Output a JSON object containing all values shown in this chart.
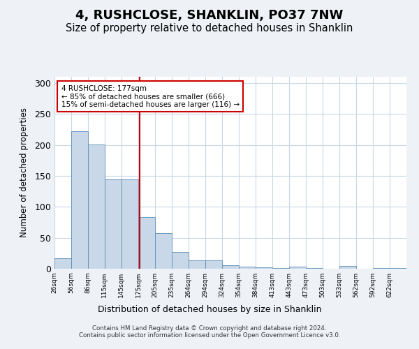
{
  "title": "4, RUSHCLOSE, SHANKLIN, PO37 7NW",
  "subtitle": "Size of property relative to detached houses in Shanklin",
  "xlabel": "Distribution of detached houses by size in Shanklin",
  "ylabel": "Number of detached properties",
  "bar_color": "#c8d8e8",
  "bar_edge_color": "#5b8db8",
  "bin_edges": [
    26,
    56,
    86,
    115,
    145,
    175,
    205,
    235,
    264,
    294,
    324,
    354,
    384,
    413,
    443,
    473,
    503,
    533,
    562,
    592,
    622,
    652
  ],
  "bar_heights": [
    17,
    222,
    201,
    144,
    144,
    83,
    57,
    27,
    14,
    13,
    6,
    3,
    2,
    1,
    3,
    1,
    0,
    4,
    0,
    1,
    1
  ],
  "vline_x": 177,
  "vline_color": "#cc0000",
  "annotation_text": "4 RUSHCLOSE: 177sqm\n← 85% of detached houses are smaller (666)\n15% of semi-detached houses are larger (116) →",
  "annotation_box_color": "#cc0000",
  "ylim": [
    0,
    310
  ],
  "yticks": [
    0,
    50,
    100,
    150,
    200,
    250,
    300
  ],
  "footer": "Contains HM Land Registry data © Crown copyright and database right 2024.\nContains public sector information licensed under the Open Government Licence v3.0.",
  "bg_color": "#eef2f7",
  "plot_bg_color": "#ffffff",
  "grid_color": "#c8d8e8",
  "title_fontsize": 13,
  "subtitle_fontsize": 10.5,
  "tick_labels": [
    "26sqm",
    "56sqm",
    "86sqm",
    "115sqm",
    "145sqm",
    "175sqm",
    "205sqm",
    "235sqm",
    "264sqm",
    "294sqm",
    "324sqm",
    "354sqm",
    "384sqm",
    "413sqm",
    "443sqm",
    "473sqm",
    "503sqm",
    "533sqm",
    "562sqm",
    "592sqm",
    "622sqm"
  ]
}
